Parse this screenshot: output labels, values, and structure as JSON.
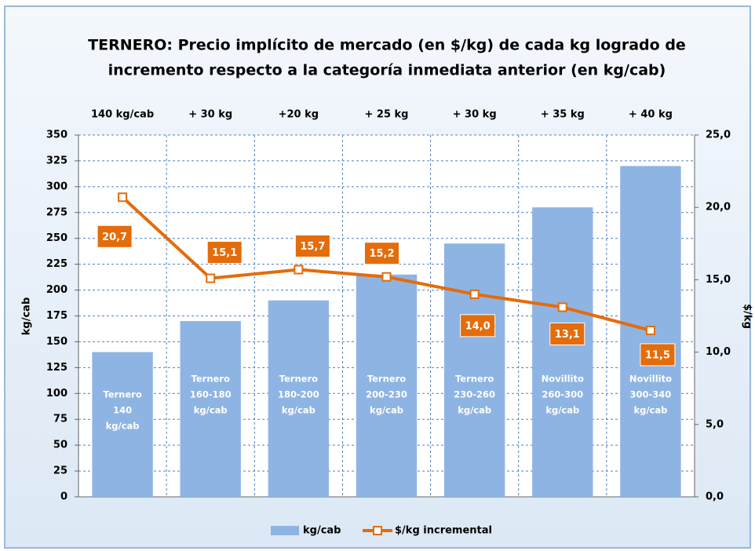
{
  "chart_data": {
    "type": "bar-line",
    "title": [
      "TERNERO: Precio implícito de mercado (en $/kg) de cada kg logrado de",
      "incremento respecto a la categoría inmediata anterior (en kg/cab)"
    ],
    "categories": [
      "140 kg/cab",
      "+ 30 kg",
      "+20 kg",
      "+ 25 kg",
      "+ 30 kg",
      "+ 35 kg",
      "+ 40 kg"
    ],
    "bar_labels": [
      [
        "Ternero",
        "140",
        "kg/cab"
      ],
      [
        "Ternero",
        "160-180",
        "kg/cab"
      ],
      [
        "Ternero",
        "180-200",
        "kg/cab"
      ],
      [
        "Ternero",
        "200-230",
        "kg/cab"
      ],
      [
        "Ternero",
        "230-260",
        "kg/cab"
      ],
      [
        "Novillito",
        "260-300",
        "kg/cab"
      ],
      [
        "Novillito",
        "300-340",
        "kg/cab"
      ]
    ],
    "series": [
      {
        "name": "kg/cab",
        "type": "bar",
        "color": "#8eb4e3",
        "values": [
          140,
          170,
          190,
          215,
          245,
          280,
          320
        ]
      },
      {
        "name": "$/kg incremental",
        "type": "line",
        "axis": "y2",
        "color": "#e46c0a",
        "values": [
          20.7,
          15.1,
          15.7,
          15.2,
          14.0,
          13.1,
          11.5
        ],
        "value_labels": [
          "20,7",
          "15,1",
          "15,7",
          "15,2",
          "14,0",
          "13,1",
          "11,5"
        ]
      }
    ],
    "ylabel": "kg/cab",
    "y2label": "$/kg",
    "ylim": [
      0,
      350
    ],
    "yticks": [
      0,
      25,
      50,
      75,
      100,
      125,
      150,
      175,
      200,
      225,
      250,
      275,
      300,
      325,
      350
    ],
    "y2lim": [
      0,
      25
    ],
    "y2ticks": [
      {
        "value": 0,
        "label": "0,0"
      },
      {
        "value": 5,
        "label": "5,0"
      },
      {
        "value": 10,
        "label": "10,0"
      },
      {
        "value": 15,
        "label": "15,0"
      },
      {
        "value": 20,
        "label": "20,0"
      },
      {
        "value": 25,
        "label": "25,0"
      }
    ],
    "grid": true,
    "legend": "bottom"
  }
}
